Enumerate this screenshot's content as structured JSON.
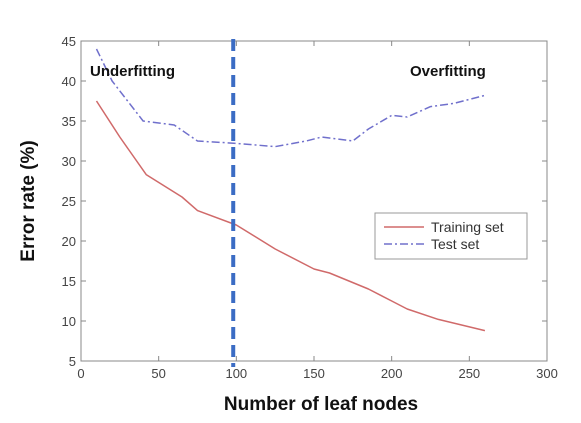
{
  "chart_data": {
    "type": "line",
    "title": "",
    "xlabel": "Number of leaf nodes",
    "ylabel": "Error rate (%)",
    "xlim": [
      0,
      300
    ],
    "ylim": [
      5,
      45
    ],
    "xticks": [
      0,
      50,
      100,
      150,
      200,
      250,
      300
    ],
    "yticks": [
      5,
      10,
      15,
      20,
      25,
      30,
      35,
      40,
      45
    ],
    "grid": false,
    "legend_position": "center-right",
    "series": [
      {
        "name": "Training set",
        "style": "solid",
        "color": "#d06a6a",
        "x": [
          10,
          25,
          42,
          65,
          75,
          100,
          125,
          150,
          160,
          185,
          200,
          210,
          230,
          260
        ],
        "y": [
          37.5,
          33,
          28.3,
          25.5,
          23.8,
          22,
          19,
          16.5,
          16,
          14,
          12.5,
          11.5,
          10.2,
          8.8
        ]
      },
      {
        "name": "Test set",
        "style": "dashdot",
        "color": "#7070cc",
        "x": [
          10,
          20,
          40,
          60,
          75,
          100,
          125,
          145,
          155,
          175,
          185,
          200,
          210,
          225,
          240,
          260
        ],
        "y": [
          44,
          40,
          35,
          34.5,
          32.5,
          32.2,
          31.8,
          32.5,
          33,
          32.5,
          34,
          35.7,
          35.5,
          36.8,
          37.2,
          38.2
        ]
      }
    ],
    "vline": {
      "x": 98,
      "style": "dashed",
      "color": "#3b6cc4"
    },
    "annotations": [
      "Underfitting",
      "Overfitting"
    ]
  }
}
